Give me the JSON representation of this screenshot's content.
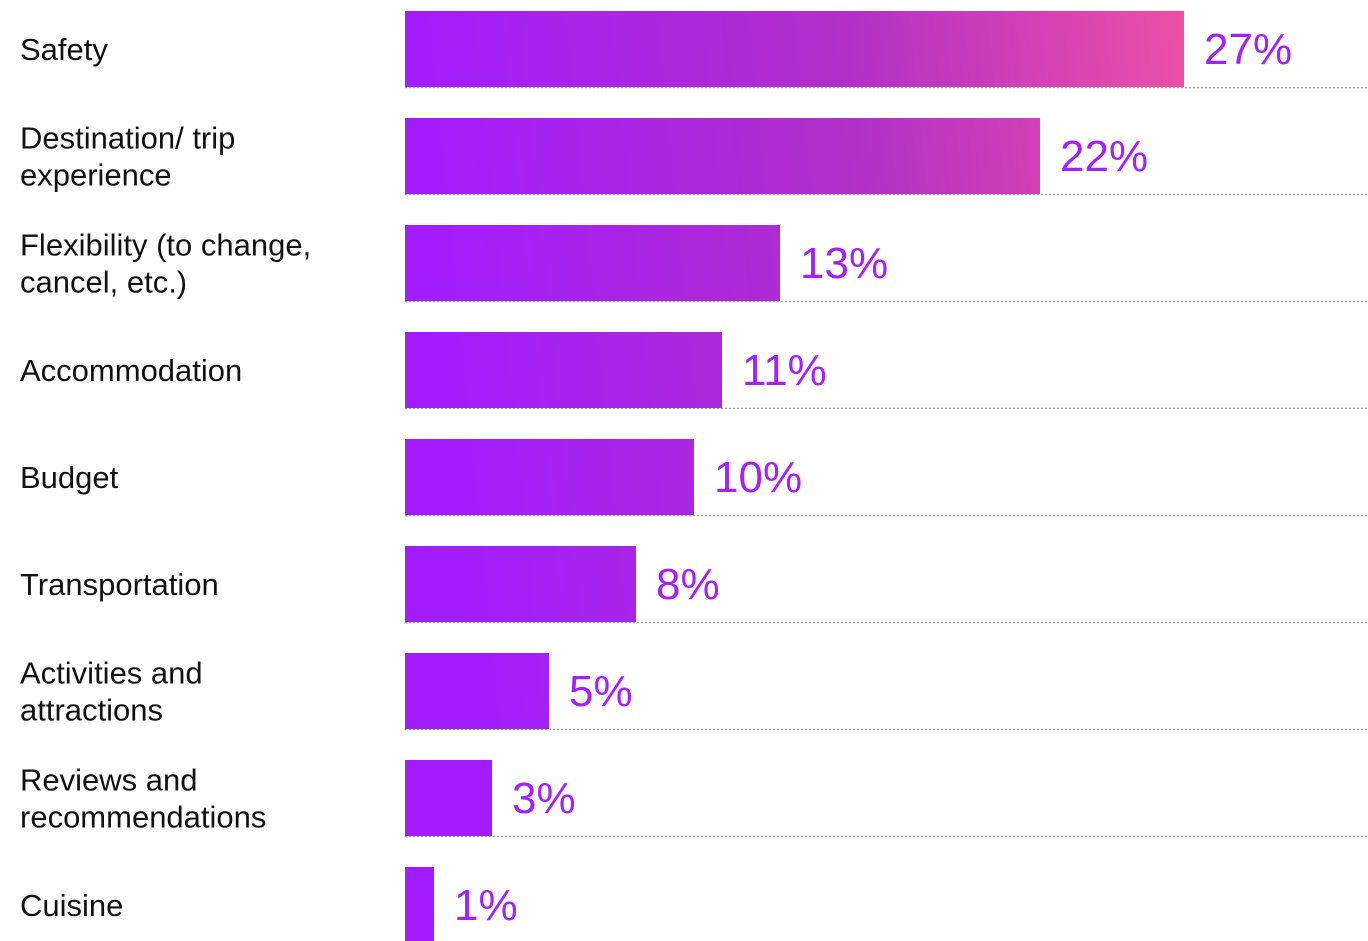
{
  "chart_data": {
    "type": "bar",
    "orientation": "horizontal",
    "title": "",
    "xlabel": "",
    "ylabel": "",
    "grid": false,
    "legend": "none",
    "categories": [
      [
        "Safety"
      ],
      [
        "Destination/ trip",
        "experience"
      ],
      [
        "Flexibility (to change,",
        "cancel, etc.)"
      ],
      [
        "Accommodation"
      ],
      [
        "Budget"
      ],
      [
        "Transportation"
      ],
      [
        "Activities and",
        "attractions"
      ],
      [
        "Reviews and",
        "recommendations"
      ],
      [
        "Cuisine"
      ]
    ],
    "values": [
      27,
      22,
      13,
      11,
      10,
      8,
      5,
      3,
      1
    ],
    "value_labels": [
      "27%",
      "22%",
      "13%",
      "11%",
      "10%",
      "8%",
      "5%",
      "3%",
      "1%"
    ],
    "xlim": [
      0,
      27
    ],
    "colors": {
      "bar_start": "#a21cff",
      "bar_mid": "#b02fc9",
      "bar_end": "#ec4fa6",
      "value_text": "#a51fff",
      "category_text": "#111111",
      "baseline": "#9a9a9a"
    }
  }
}
